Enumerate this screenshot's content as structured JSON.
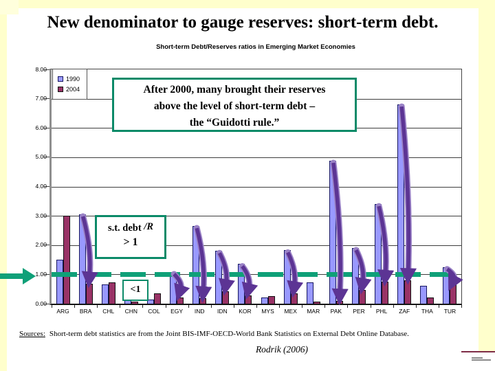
{
  "slide": {
    "title": "New denominator to gauge reserves: short-term debt.",
    "sources_label": "Sources:",
    "sources_text": "Short-term debt statistics are from the Joint BIS-IMF-OECD-World Bank Statistics on External Debt Online Database.",
    "attribution": "Rodrik (2006)"
  },
  "annotations": {
    "guidotti_line1": "After 2000, many brought their reserves",
    "guidotti_line2": "above the level of short-term debt –",
    "guidotti_line3": "the “Guidotti rule.”",
    "ratio_prefix": "s.t. debt",
    "ratio_suffix": "/R",
    "ratio_condition": "> 1",
    "below_one_label": "<1"
  },
  "chart_data": {
    "type": "bar",
    "title": "Short-term Debt/Reserves ratios in Emerging Market Economies",
    "categories": [
      "ARG",
      "BRA",
      "CHL",
      "CHN",
      "COL",
      "EGY",
      "IND",
      "IDN",
      "KOR",
      "MYS",
      "MEX",
      "MAR",
      "PAK",
      "PER",
      "PHL",
      "ZAF",
      "THA",
      "TUR"
    ],
    "series": [
      {
        "name": "1990",
        "color": "#9999FF",
        "values": [
          1.5,
          3.05,
          0.65,
          0.28,
          0.15,
          1.08,
          2.65,
          1.8,
          1.35,
          0.2,
          1.82,
          0.72,
          4.88,
          1.9,
          3.4,
          6.8,
          0.62,
          1.25
        ]
      },
      {
        "name": "2004",
        "color": "#993366",
        "values": [
          3.0,
          0.68,
          0.72,
          0.06,
          0.35,
          0.22,
          0.18,
          0.42,
          0.28,
          0.26,
          0.35,
          0.08,
          0.1,
          0.46,
          0.74,
          0.8,
          0.22,
          0.92
        ]
      }
    ],
    "xlabel": "",
    "ylabel": "",
    "ylim": [
      0,
      8
    ],
    "ytick_labels": [
      "0.00",
      "1.00",
      "2.00",
      "3.00",
      "4.00",
      "5.00",
      "6.00",
      "7.00",
      "8.00"
    ],
    "grid": true,
    "legend_position": "top-left-inside",
    "threshold_line": {
      "value": 1.0,
      "style": "dashed",
      "color": "#0FA078"
    },
    "decline_arrow_categories": [
      "BRA",
      "EGY",
      "IND",
      "IDN",
      "KOR",
      "MEX",
      "PAK",
      "PER",
      "PHL",
      "ZAF",
      "TUR"
    ]
  },
  "colors": {
    "background": "#FFFFCC",
    "content": "#FFFFFF",
    "accent_green": "#0FA078",
    "box_border_green": "#0B8A68",
    "arrow_purple": "#5C3494",
    "arrow_purple_light": "#9A82C6",
    "bar_1990": "#9999FF",
    "bar_2004": "#993366",
    "footer_maroon": "#7D2B45"
  }
}
